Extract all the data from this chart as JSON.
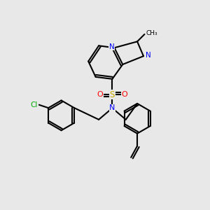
{
  "background_color": "#e8e8e8",
  "bond_color": "#000000",
  "atom_colors": {
    "N": "#0000ff",
    "S": "#ccaa00",
    "O": "#ff0000",
    "Cl": "#00aa00",
    "C": "#000000"
  },
  "figsize": [
    3.0,
    3.0
  ],
  "dpi": 100
}
